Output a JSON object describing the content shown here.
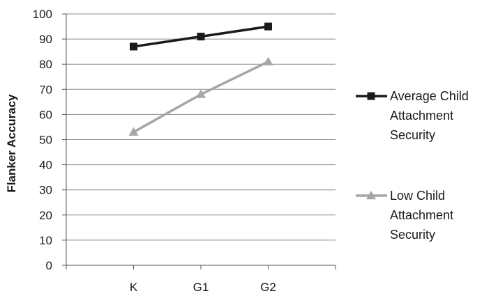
{
  "chart_data": {
    "type": "line",
    "title": "",
    "xlabel": "",
    "ylabel": "Flanker Accuracy",
    "categories": [
      "K",
      "G1",
      "G2"
    ],
    "ylim": [
      0,
      100
    ],
    "yticks": [
      0,
      10,
      20,
      30,
      40,
      50,
      60,
      70,
      80,
      90,
      100
    ],
    "grid": "horizontal",
    "legend_position": "right",
    "series": [
      {
        "name": "Average Child Attachment Security",
        "legend_lines": [
          "Average Child",
          "Attachment",
          "Security"
        ],
        "values": [
          87,
          91,
          95
        ],
        "color": "#1a1a1a",
        "marker": "square"
      },
      {
        "name": "Low Child Attachment Security",
        "legend_lines": [
          "Low Child",
          "Attachment",
          "Security"
        ],
        "values": [
          53,
          68,
          81
        ],
        "color": "#a6a6a6",
        "marker": "triangle"
      }
    ]
  }
}
